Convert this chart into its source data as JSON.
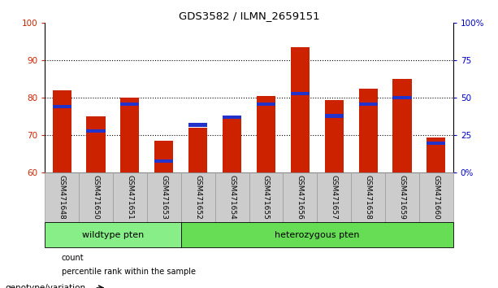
{
  "title": "GDS3582 / ILMN_2659151",
  "samples": [
    "GSM471648",
    "GSM471650",
    "GSM471651",
    "GSM471653",
    "GSM471652",
    "GSM471654",
    "GSM471655",
    "GSM471656",
    "GSM471657",
    "GSM471658",
    "GSM471659",
    "GSM471660"
  ],
  "count_values": [
    82,
    75,
    80,
    68.5,
    72,
    74.5,
    80.5,
    93.5,
    79.5,
    82.5,
    85,
    69.5
  ],
  "percentile_values": [
    44,
    28,
    46,
    8,
    32,
    37,
    46,
    53,
    38,
    46,
    50,
    20
  ],
  "ylim": [
    60,
    100
  ],
  "y_ticks": [
    60,
    70,
    80,
    90,
    100
  ],
  "right_y_ticks": [
    0,
    25,
    50,
    75,
    100
  ],
  "right_y_tick_labels": [
    "0%",
    "25",
    "50",
    "75",
    "100%"
  ],
  "bar_color": "#cc2200",
  "percentile_color": "#2233cc",
  "groups": [
    {
      "label": "wildtype pten",
      "start": 0,
      "end": 3
    },
    {
      "label": "heterozygous pten",
      "start": 4,
      "end": 11
    }
  ],
  "group_color_wildtype": "#88ee88",
  "group_color_hetero": "#66dd55",
  "legend_items": [
    {
      "label": "count",
      "color": "#cc2200"
    },
    {
      "label": "percentile rank within the sample",
      "color": "#2233cc"
    }
  ],
  "annotation_label": "genotype/variation",
  "right_axis_color": "#0000cc",
  "left_axis_color": "#cc2200",
  "sample_cell_color": "#cccccc",
  "sample_cell_edge": "#999999"
}
